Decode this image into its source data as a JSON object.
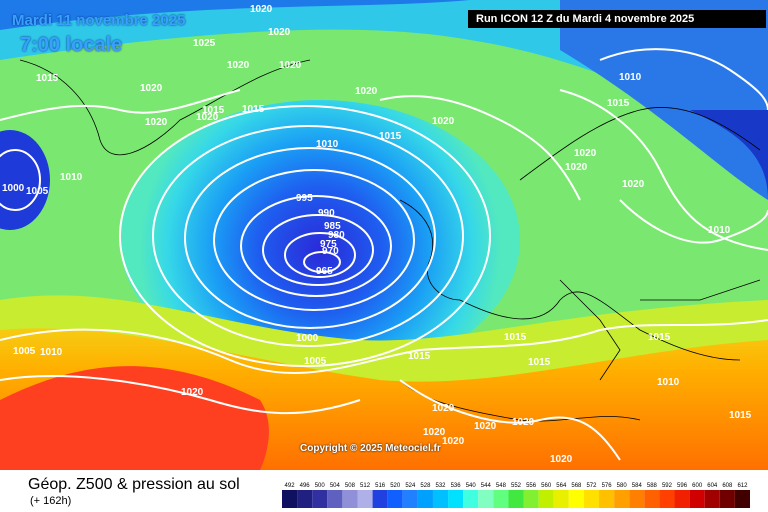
{
  "header": {
    "date": "Mardi 11 novembre 2025",
    "time": "7:00 locale",
    "run": "Run ICON 12 Z du Mardi 4 novembre 2025"
  },
  "copyright": "Copyright © 2025 Meteociel.fr",
  "legend": {
    "title": "Géop. Z500 & pression au sol",
    "subtitle": "(+ 162h)",
    "scale_values": [
      "492",
      "496",
      "500",
      "504",
      "508",
      "512",
      "516",
      "520",
      "524",
      "528",
      "532",
      "536",
      "540",
      "544",
      "548",
      "552",
      "556",
      "560",
      "564",
      "568",
      "572",
      "576",
      "580",
      "584",
      "588",
      "592",
      "596",
      "600",
      "604",
      "608",
      "612"
    ],
    "scale_colors": [
      "#101060",
      "#202080",
      "#3030a0",
      "#6060c0",
      "#9090d8",
      "#b0b0e8",
      "#2040e0",
      "#1060ff",
      "#2080ff",
      "#00a0ff",
      "#00c0ff",
      "#00e0ff",
      "#40ffe0",
      "#80ffc0",
      "#60ff80",
      "#40e840",
      "#80f030",
      "#c0f000",
      "#e8f000",
      "#ffff00",
      "#ffe000",
      "#ffc000",
      "#ffa000",
      "#ff8000",
      "#ff6000",
      "#ff4000",
      "#f02000",
      "#d00000",
      "#a00000",
      "#700000",
      "#400000"
    ]
  },
  "isobar_labels": [
    {
      "text": "1020"
    },
    {
      "text": "1020"
    },
    {
      "text": "1025"
    },
    {
      "text": "1020"
    },
    {
      "text": "1020"
    },
    {
      "text": "1015"
    },
    {
      "text": "1020"
    },
    {
      "text": "1020"
    },
    {
      "text": "1020"
    },
    {
      "text": "1015"
    },
    {
      "text": "1015"
    },
    {
      "text": "1020"
    },
    {
      "text": "1010"
    },
    {
      "text": "1015"
    },
    {
      "text": "1020"
    },
    {
      "text": "1010"
    },
    {
      "text": "1015"
    },
    {
      "text": "1020"
    },
    {
      "text": "1020"
    },
    {
      "text": "1020"
    },
    {
      "text": "1000"
    },
    {
      "text": "1005"
    },
    {
      "text": "1010"
    },
    {
      "text": "995"
    },
    {
      "text": "990"
    },
    {
      "text": "985"
    },
    {
      "text": "980"
    },
    {
      "text": "975"
    },
    {
      "text": "970"
    },
    {
      "text": "965"
    },
    {
      "text": "1010"
    },
    {
      "text": "1000"
    },
    {
      "text": "1005"
    },
    {
      "text": "1005"
    },
    {
      "text": "1010"
    },
    {
      "text": "1015"
    },
    {
      "text": "1015"
    },
    {
      "text": "1015"
    },
    {
      "text": "1015"
    },
    {
      "text": "1010"
    },
    {
      "text": "1020"
    },
    {
      "text": "1020"
    },
    {
      "text": "1020"
    },
    {
      "text": "1020"
    },
    {
      "text": "1020"
    },
    {
      "text": "1020"
    },
    {
      "text": "1020"
    },
    {
      "text": "1015"
    }
  ]
}
